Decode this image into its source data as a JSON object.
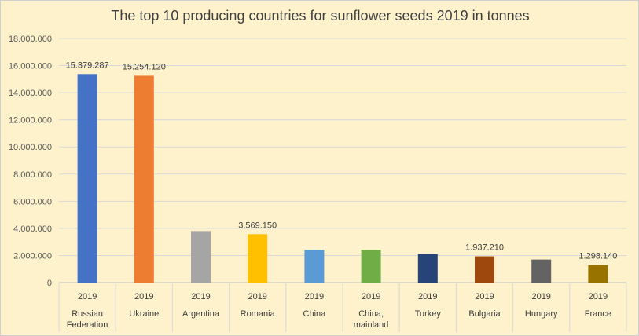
{
  "chart_data": {
    "type": "bar",
    "title": "The top 10 producing countries for sunflower seeds 2019 in tonnes",
    "xlabel": "",
    "ylabel": "",
    "ylim": [
      0,
      18000000
    ],
    "y_ticks": [
      "0",
      "2.000.000",
      "4.000.000",
      "6.000.000",
      "8.000.000",
      "10.000.000",
      "12.000.000",
      "14.000.000",
      "16.000.000",
      "18.000.000"
    ],
    "grid": true,
    "legend": "none",
    "categories": [
      {
        "year": "2019",
        "name": [
          "Russian",
          "Federation"
        ],
        "value": 15379287,
        "label": "15.379.287",
        "color": "#4472c4"
      },
      {
        "year": "2019",
        "name": [
          "Ukraine"
        ],
        "value": 15254120,
        "label": "15.254.120",
        "color": "#ed7d31"
      },
      {
        "year": "2019",
        "name": [
          "Argentina"
        ],
        "value": 3800000,
        "label": "",
        "color": "#a5a5a5"
      },
      {
        "year": "2019",
        "name": [
          "Romania"
        ],
        "value": 3569150,
        "label": "3.569.150",
        "color": "#ffc000"
      },
      {
        "year": "2019",
        "name": [
          "China"
        ],
        "value": 2420000,
        "label": "",
        "color": "#5b9bd5"
      },
      {
        "year": "2019",
        "name": [
          "China,",
          "mainland"
        ],
        "value": 2420000,
        "label": "",
        "color": "#70ad47"
      },
      {
        "year": "2019",
        "name": [
          "Turkey"
        ],
        "value": 2100000,
        "label": "",
        "color": "#264478"
      },
      {
        "year": "2019",
        "name": [
          "Bulgaria"
        ],
        "value": 1937210,
        "label": "1.937.210",
        "color": "#9e480e"
      },
      {
        "year": "2019",
        "name": [
          "Hungary"
        ],
        "value": 1700000,
        "label": "",
        "color": "#636363"
      },
      {
        "year": "2019",
        "name": [
          "France"
        ],
        "value": 1298140,
        "label": "1.298.140",
        "color": "#997300"
      }
    ]
  }
}
